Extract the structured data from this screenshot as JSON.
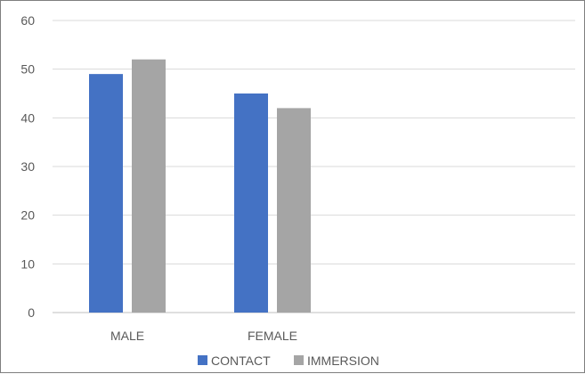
{
  "chart_data": {
    "type": "bar",
    "title": "",
    "xlabel": "",
    "ylabel": "",
    "categories": [
      "MALE",
      "FEMALE"
    ],
    "series": [
      {
        "name": "CONTACT",
        "color": "#4472c4",
        "values": [
          49,
          45
        ]
      },
      {
        "name": "IMMERSION",
        "color": "#a5a5a5",
        "values": [
          52,
          42
        ]
      }
    ],
    "ylim": [
      0,
      60
    ],
    "yticks": [
      "0",
      "10",
      "20",
      "30",
      "40",
      "50",
      "60"
    ],
    "grid": true,
    "legend_position": "bottom"
  }
}
